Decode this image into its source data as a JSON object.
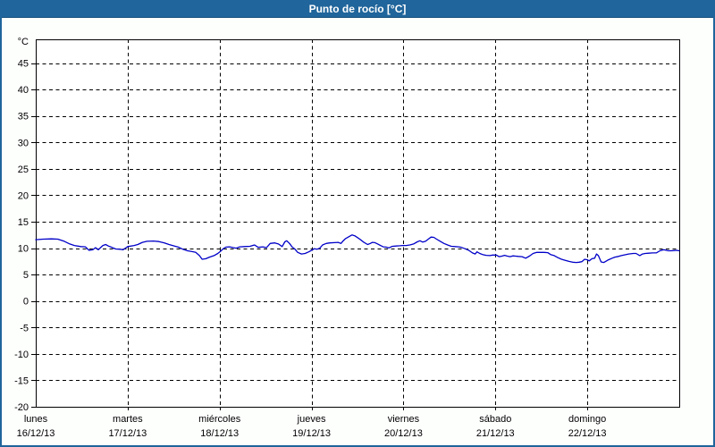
{
  "window": {
    "title": "Punto de rocío [°C]"
  },
  "colors": {
    "titlebar_bg": "#20659b",
    "titlebar_text": "#ffffff",
    "frame": "#20659b",
    "background": "#fdfffd",
    "plot_bg": "#ffffff",
    "axis": "#000000",
    "grid": "#000000",
    "line": "#0000c8"
  },
  "chart_data": {
    "type": "line",
    "title": "Punto de rocío [°C]",
    "ylabel": "°C",
    "xlabel": "",
    "ylim": [
      -20,
      49.5
    ],
    "y_ticks": [
      45,
      40,
      35,
      30,
      25,
      20,
      15,
      10,
      5,
      0,
      -5,
      -10,
      -15,
      -20
    ],
    "grid": true,
    "grid_style": "dashed",
    "legend": false,
    "x_axis": {
      "days": [
        {
          "label": "lunes",
          "date": "16/12/13"
        },
        {
          "label": "martes",
          "date": "17/12/13"
        },
        {
          "label": "miércoles",
          "date": "18/12/13"
        },
        {
          "label": "jueves",
          "date": "19/12/13"
        },
        {
          "label": "viernes",
          "date": "20/12/13"
        },
        {
          "label": "sábado",
          "date": "21/12/13"
        },
        {
          "label": "domingo",
          "date": "22/12/13"
        }
      ]
    },
    "series": [
      {
        "name": "Punto de rocío",
        "unit": "°C",
        "color": "#0000c8",
        "points": [
          [
            0.0,
            11.6
          ],
          [
            0.08,
            11.7
          ],
          [
            0.17,
            11.75
          ],
          [
            0.24,
            11.7
          ],
          [
            0.31,
            11.3
          ],
          [
            0.37,
            10.8
          ],
          [
            0.42,
            10.5
          ],
          [
            0.49,
            10.3
          ],
          [
            0.54,
            10.25
          ],
          [
            0.58,
            9.6
          ],
          [
            0.62,
            9.7
          ],
          [
            0.65,
            10.1
          ],
          [
            0.68,
            9.7
          ],
          [
            0.73,
            10.5
          ],
          [
            0.76,
            10.7
          ],
          [
            0.79,
            10.4
          ],
          [
            0.82,
            10.2
          ],
          [
            0.87,
            9.85
          ],
          [
            0.92,
            9.8
          ],
          [
            0.95,
            9.7
          ],
          [
            1.0,
            10.3
          ],
          [
            1.07,
            10.5
          ],
          [
            1.11,
            10.7
          ],
          [
            1.16,
            11.1
          ],
          [
            1.21,
            11.3
          ],
          [
            1.28,
            11.35
          ],
          [
            1.34,
            11.25
          ],
          [
            1.4,
            11.0
          ],
          [
            1.45,
            10.7
          ],
          [
            1.51,
            10.4
          ],
          [
            1.55,
            10.2
          ],
          [
            1.6,
            9.8
          ],
          [
            1.65,
            9.5
          ],
          [
            1.7,
            9.35
          ],
          [
            1.74,
            9.2
          ],
          [
            1.78,
            8.6
          ],
          [
            1.81,
            7.9
          ],
          [
            1.85,
            8.0
          ],
          [
            1.89,
            8.3
          ],
          [
            1.94,
            8.6
          ],
          [
            1.98,
            9.0
          ],
          [
            2.01,
            9.4
          ],
          [
            2.04,
            9.9
          ],
          [
            2.07,
            10.2
          ],
          [
            2.11,
            10.25
          ],
          [
            2.15,
            10.1
          ],
          [
            2.18,
            10.0
          ],
          [
            2.22,
            10.25
          ],
          [
            2.27,
            10.3
          ],
          [
            2.33,
            10.35
          ],
          [
            2.38,
            10.6
          ],
          [
            2.42,
            10.15
          ],
          [
            2.47,
            10.25
          ],
          [
            2.51,
            10.1
          ],
          [
            2.55,
            10.9
          ],
          [
            2.6,
            11.0
          ],
          [
            2.64,
            10.8
          ],
          [
            2.68,
            10.3
          ],
          [
            2.71,
            11.2
          ],
          [
            2.73,
            11.4
          ],
          [
            2.76,
            10.9
          ],
          [
            2.79,
            10.2
          ],
          [
            2.82,
            9.8
          ],
          [
            2.85,
            9.2
          ],
          [
            2.89,
            8.9
          ],
          [
            2.93,
            9.0
          ],
          [
            2.97,
            9.3
          ],
          [
            3.01,
            9.7
          ],
          [
            3.03,
            9.9
          ],
          [
            3.06,
            9.8
          ],
          [
            3.09,
            10.0
          ],
          [
            3.12,
            10.6
          ],
          [
            3.16,
            10.9
          ],
          [
            3.2,
            11.0
          ],
          [
            3.25,
            11.05
          ],
          [
            3.29,
            11.1
          ],
          [
            3.32,
            10.9
          ],
          [
            3.34,
            11.3
          ],
          [
            3.37,
            11.8
          ],
          [
            3.41,
            12.2
          ],
          [
            3.44,
            12.5
          ],
          [
            3.47,
            12.35
          ],
          [
            3.51,
            11.9
          ],
          [
            3.54,
            11.5
          ],
          [
            3.57,
            11.1
          ],
          [
            3.61,
            10.7
          ],
          [
            3.64,
            10.9
          ],
          [
            3.66,
            11.1
          ],
          [
            3.69,
            11.05
          ],
          [
            3.72,
            10.8
          ],
          [
            3.75,
            10.5
          ],
          [
            3.78,
            10.25
          ],
          [
            3.81,
            10.2
          ],
          [
            3.84,
            10.05
          ],
          [
            3.88,
            10.35
          ],
          [
            3.92,
            10.4
          ],
          [
            3.96,
            10.45
          ],
          [
            3.99,
            10.5
          ],
          [
            4.03,
            10.5
          ],
          [
            4.07,
            10.6
          ],
          [
            4.11,
            10.8
          ],
          [
            4.15,
            11.2
          ],
          [
            4.18,
            11.4
          ],
          [
            4.21,
            11.15
          ],
          [
            4.24,
            11.3
          ],
          [
            4.27,
            11.7
          ],
          [
            4.3,
            12.1
          ],
          [
            4.33,
            12.05
          ],
          [
            4.36,
            11.7
          ],
          [
            4.4,
            11.3
          ],
          [
            4.44,
            10.9
          ],
          [
            4.48,
            10.6
          ],
          [
            4.52,
            10.35
          ],
          [
            4.56,
            10.3
          ],
          [
            4.6,
            10.25
          ],
          [
            4.63,
            10.15
          ],
          [
            4.67,
            9.9
          ],
          [
            4.71,
            9.6
          ],
          [
            4.75,
            9.1
          ],
          [
            4.78,
            8.9
          ],
          [
            4.8,
            9.3
          ],
          [
            4.83,
            9.0
          ],
          [
            4.86,
            8.8
          ],
          [
            4.9,
            8.65
          ],
          [
            4.94,
            8.6
          ],
          [
            4.97,
            8.7
          ],
          [
            5.01,
            8.7
          ],
          [
            5.04,
            8.4
          ],
          [
            5.07,
            8.5
          ],
          [
            5.1,
            8.65
          ],
          [
            5.13,
            8.5
          ],
          [
            5.16,
            8.4
          ],
          [
            5.19,
            8.55
          ],
          [
            5.22,
            8.5
          ],
          [
            5.25,
            8.45
          ],
          [
            5.29,
            8.4
          ],
          [
            5.33,
            8.1
          ],
          [
            5.37,
            8.5
          ],
          [
            5.41,
            9.0
          ],
          [
            5.45,
            9.2
          ],
          [
            5.49,
            9.2
          ],
          [
            5.53,
            9.2
          ],
          [
            5.57,
            9.15
          ],
          [
            5.6,
            8.8
          ],
          [
            5.64,
            8.6
          ],
          [
            5.68,
            8.2
          ],
          [
            5.72,
            7.9
          ],
          [
            5.76,
            7.7
          ],
          [
            5.8,
            7.5
          ],
          [
            5.84,
            7.35
          ],
          [
            5.88,
            7.3
          ],
          [
            5.91,
            7.35
          ],
          [
            5.94,
            7.45
          ],
          [
            5.97,
            7.9
          ],
          [
            6.0,
            7.8
          ],
          [
            6.02,
            7.6
          ],
          [
            6.05,
            8.0
          ],
          [
            6.08,
            8.1
          ],
          [
            6.1,
            8.9
          ],
          [
            6.12,
            8.6
          ],
          [
            6.15,
            7.4
          ],
          [
            6.18,
            7.3
          ],
          [
            6.21,
            7.6
          ],
          [
            6.23,
            7.8
          ],
          [
            6.27,
            8.1
          ],
          [
            6.3,
            8.3
          ],
          [
            6.34,
            8.45
          ],
          [
            6.37,
            8.6
          ],
          [
            6.41,
            8.75
          ],
          [
            6.45,
            8.9
          ],
          [
            6.5,
            9.0
          ],
          [
            6.53,
            9.0
          ],
          [
            6.57,
            8.6
          ],
          [
            6.6,
            8.9
          ],
          [
            6.63,
            9.0
          ],
          [
            6.67,
            9.05
          ],
          [
            6.71,
            9.1
          ],
          [
            6.75,
            9.1
          ],
          [
            6.79,
            9.5
          ],
          [
            6.83,
            9.7
          ],
          [
            6.85,
            9.65
          ],
          [
            6.88,
            9.5
          ],
          [
            6.91,
            9.5
          ],
          [
            6.94,
            9.55
          ],
          [
            6.97,
            9.6
          ],
          [
            7.0,
            9.5
          ]
        ]
      }
    ]
  }
}
